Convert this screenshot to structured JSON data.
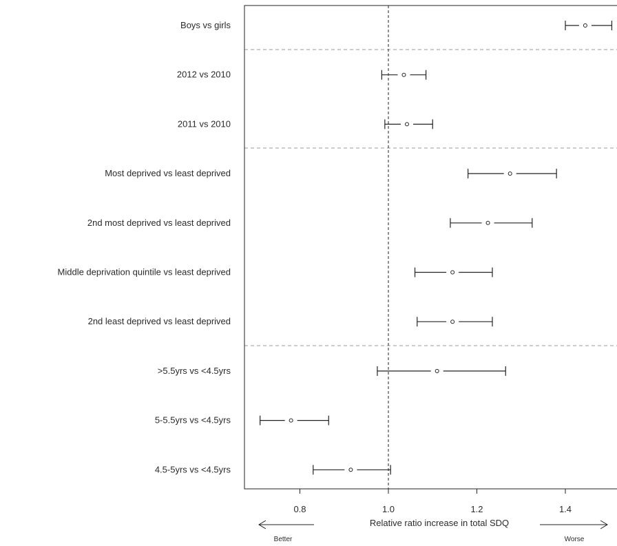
{
  "chart_data": {
    "type": "scatter",
    "subtype": "forest-plot",
    "xlabel": "Relative ratio increase in total SDQ",
    "x_ticks": [
      0.8,
      1.0,
      1.2,
      1.4
    ],
    "x_tick_labels": [
      "0.8",
      "1.0",
      "1.2",
      "1.4"
    ],
    "xlim": [
      0.7,
      1.5
    ],
    "reference_line": 1.0,
    "left_annotation": "Better",
    "right_annotation": "Worse",
    "groups_separated_after": [
      1,
      3,
      7
    ],
    "rows": [
      {
        "label": "Boys vs girls",
        "estimate": 1.445,
        "lower": 1.4,
        "upper": 1.505
      },
      {
        "label": "2012 vs 2010",
        "estimate": 1.035,
        "lower": 0.985,
        "upper": 1.085
      },
      {
        "label": "2011 vs 2010",
        "estimate": 1.042,
        "lower": 0.992,
        "upper": 1.1
      },
      {
        "label": "Most deprived vs least deprived",
        "estimate": 1.275,
        "lower": 1.18,
        "upper": 1.38
      },
      {
        "label": "2nd most deprived vs least deprived",
        "estimate": 1.225,
        "lower": 1.14,
        "upper": 1.325
      },
      {
        "label": "Middle deprivation quintile vs least deprived",
        "estimate": 1.145,
        "lower": 1.06,
        "upper": 1.235
      },
      {
        "label": "2nd least deprived vs least deprived",
        "estimate": 1.145,
        "lower": 1.065,
        "upper": 1.235
      },
      {
        "label": ">5.5yrs vs <4.5yrs",
        "estimate": 1.11,
        "lower": 0.975,
        "upper": 1.265
      },
      {
        "label": "5-5.5yrs vs <4.5yrs",
        "estimate": 0.78,
        "lower": 0.71,
        "upper": 0.865
      },
      {
        "label": "4.5-5yrs vs <4.5yrs",
        "estimate": 0.915,
        "lower": 0.83,
        "upper": 1.005
      }
    ]
  }
}
